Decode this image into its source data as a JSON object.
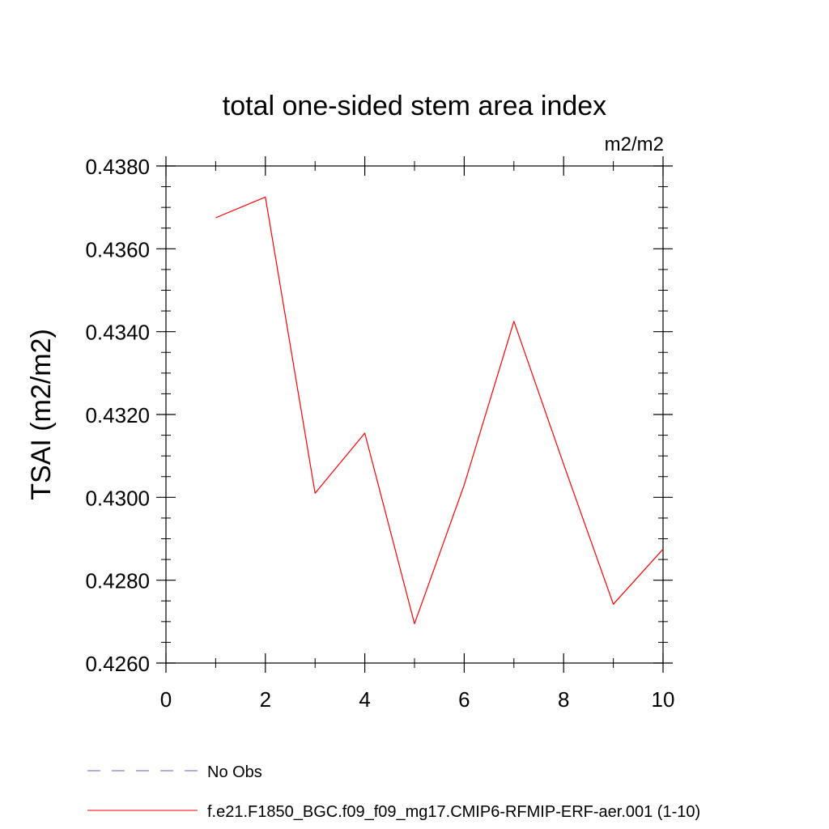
{
  "chart_data": {
    "type": "line",
    "title": "total one-sided stem area index",
    "units_label": "m2/m2",
    "ylabel": "TSAI  (m2/m2)",
    "xlabel": "",
    "xlim": [
      0,
      10
    ],
    "ylim": [
      0.426,
      0.438
    ],
    "x_ticks": [
      0,
      2,
      4,
      6,
      8,
      10
    ],
    "x_tick_labels": [
      "0",
      "2",
      "4",
      "6",
      "8",
      "10"
    ],
    "y_ticks": [
      0.426,
      0.428,
      0.43,
      0.432,
      0.434,
      0.436,
      0.438
    ],
    "y_tick_labels": [
      "0.4260",
      "0.4280",
      "0.4300",
      "0.4320",
      "0.4340",
      "0.4360",
      "0.4380"
    ],
    "grid": false,
    "legend_position": "bottom",
    "series": [
      {
        "name": "f.e21.F1850_BGC.f09_f09_mg17.CMIP6-RFMIP-ERF-aer.001 (1-10)",
        "color": "#ff0000",
        "dash": "solid",
        "x": [
          1,
          2,
          3,
          4,
          5,
          6,
          7,
          8,
          9,
          10
        ],
        "y": [
          0.43675,
          0.43725,
          0.4301,
          0.43155,
          0.42695,
          0.4303,
          0.43425,
          0.4308,
          0.42742,
          0.42875
        ]
      }
    ],
    "legend": [
      {
        "label": "No Obs",
        "color": "#6a5acd",
        "dash": "dashed"
      },
      {
        "label": "f.e21.F1850_BGC.f09_f09_mg17.CMIP6-RFMIP-ERF-aer.001 (1-10)",
        "color": "#ff0000",
        "dash": "solid"
      }
    ]
  }
}
